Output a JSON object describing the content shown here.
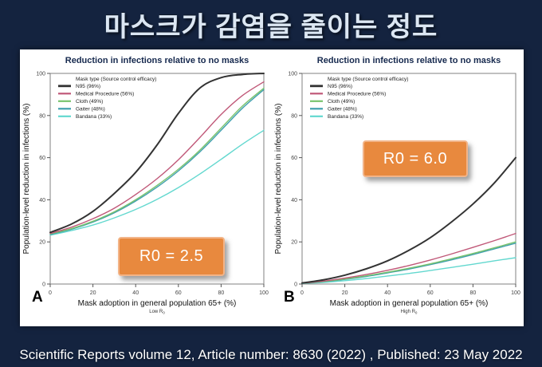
{
  "slide": {
    "title": "마스크가 감염을 줄이는 정도",
    "footer": "Scientific Reports volume 12, Article number: 8630 (2022) , Published: 23 May 2022"
  },
  "colors": {
    "accent_orange": "#e8893e",
    "background_navy": "#14233f",
    "panel_white": "#ffffff",
    "chart_title_navy": "#16294e"
  },
  "chart_data": [
    {
      "type": "line",
      "panel": "A",
      "title": "Reduction in infections relative to no masks",
      "xlabel": "Mask adoption in general population 65+ (%)",
      "xsublabel": "Low R0",
      "ylabel": "Population-level reduction in infections (%)",
      "legend_title": "Mask type (Source control efficacy)",
      "legend_position": "top-left",
      "annotation": "R0 = 2.5",
      "xlim": [
        0,
        100
      ],
      "ylim": [
        0,
        100
      ],
      "xticks": [
        0,
        20,
        40,
        60,
        80,
        100
      ],
      "yticks": [
        0,
        20,
        40,
        60,
        80,
        100
      ],
      "x": [
        0,
        10,
        20,
        30,
        40,
        50,
        60,
        70,
        80,
        90,
        100
      ],
      "series": [
        {
          "name": "N95 (96%)",
          "color": "#333333",
          "width": 2,
          "values": [
            24.5,
            28.5,
            34.5,
            43,
            53,
            66,
            81,
            93,
            98,
            99.5,
            100
          ]
        },
        {
          "name": "Medical Procedure (56%)",
          "color": "#c05878",
          "width": 1.4,
          "values": [
            24,
            27,
            31,
            36,
            42.5,
            50,
            59,
            69.5,
            80.5,
            89.5,
            96
          ]
        },
        {
          "name": "Cloth (49%)",
          "color": "#79c36d",
          "width": 1.4,
          "values": [
            23.8,
            26.3,
            29.8,
            34.3,
            40,
            46.8,
            54.5,
            63.5,
            74,
            84.5,
            93
          ]
        },
        {
          "name": "Gaiter (48%)",
          "color": "#3f9fae",
          "width": 1.4,
          "values": [
            23.5,
            26,
            29.4,
            33.8,
            39.4,
            46,
            53.7,
            62.7,
            73,
            83.5,
            92.3
          ]
        },
        {
          "name": "Bandana (33%)",
          "color": "#63d8cf",
          "width": 1.4,
          "values": [
            23.2,
            25.4,
            28,
            31.4,
            35.4,
            40.2,
            45.8,
            52.2,
            59.2,
            66.4,
            73
          ]
        }
      ]
    },
    {
      "type": "line",
      "panel": "B",
      "title": "Reduction in infections relative to no masks",
      "xlabel": "Mask adoption in general population 65+ (%)",
      "xsublabel": "High R0",
      "ylabel": "Population-level reduction in infections (%)",
      "legend_title": "Mask type (Source control efficacy)",
      "legend_position": "top-left",
      "annotation": "R0 = 6.0",
      "xlim": [
        0,
        100
      ],
      "ylim": [
        0,
        100
      ],
      "xticks": [
        0,
        20,
        40,
        60,
        80,
        100
      ],
      "yticks": [
        0,
        20,
        40,
        60,
        80,
        100
      ],
      "x": [
        0,
        10,
        20,
        30,
        40,
        50,
        60,
        70,
        80,
        90,
        100
      ],
      "series": [
        {
          "name": "N95 (96%)",
          "color": "#333333",
          "width": 2,
          "values": [
            0.5,
            2,
            4.2,
            7.2,
            11,
            16,
            22,
            29.5,
            38,
            48,
            60
          ]
        },
        {
          "name": "Medical Procedure (56%)",
          "color": "#c05878",
          "width": 1.4,
          "values": [
            0.4,
            1.4,
            2.8,
            4.5,
            6.5,
            8.8,
            11.4,
            14.3,
            17.4,
            20.6,
            24
          ]
        },
        {
          "name": "Cloth (49%)",
          "color": "#79c36d",
          "width": 1.4,
          "values": [
            0.4,
            1.2,
            2.4,
            3.9,
            5.6,
            7.5,
            9.6,
            12,
            14.5,
            17.2,
            20
          ]
        },
        {
          "name": "Gaiter (48%)",
          "color": "#3f9fae",
          "width": 1.4,
          "values": [
            0.35,
            1.1,
            2.2,
            3.6,
            5.3,
            7.1,
            9.2,
            11.5,
            14,
            16.7,
            19.4
          ]
        },
        {
          "name": "Bandana (33%)",
          "color": "#63d8cf",
          "width": 1.4,
          "values": [
            0.3,
            0.8,
            1.6,
            2.6,
            3.8,
            5,
            6.4,
            7.9,
            9.4,
            11,
            12.5
          ]
        }
      ]
    }
  ]
}
